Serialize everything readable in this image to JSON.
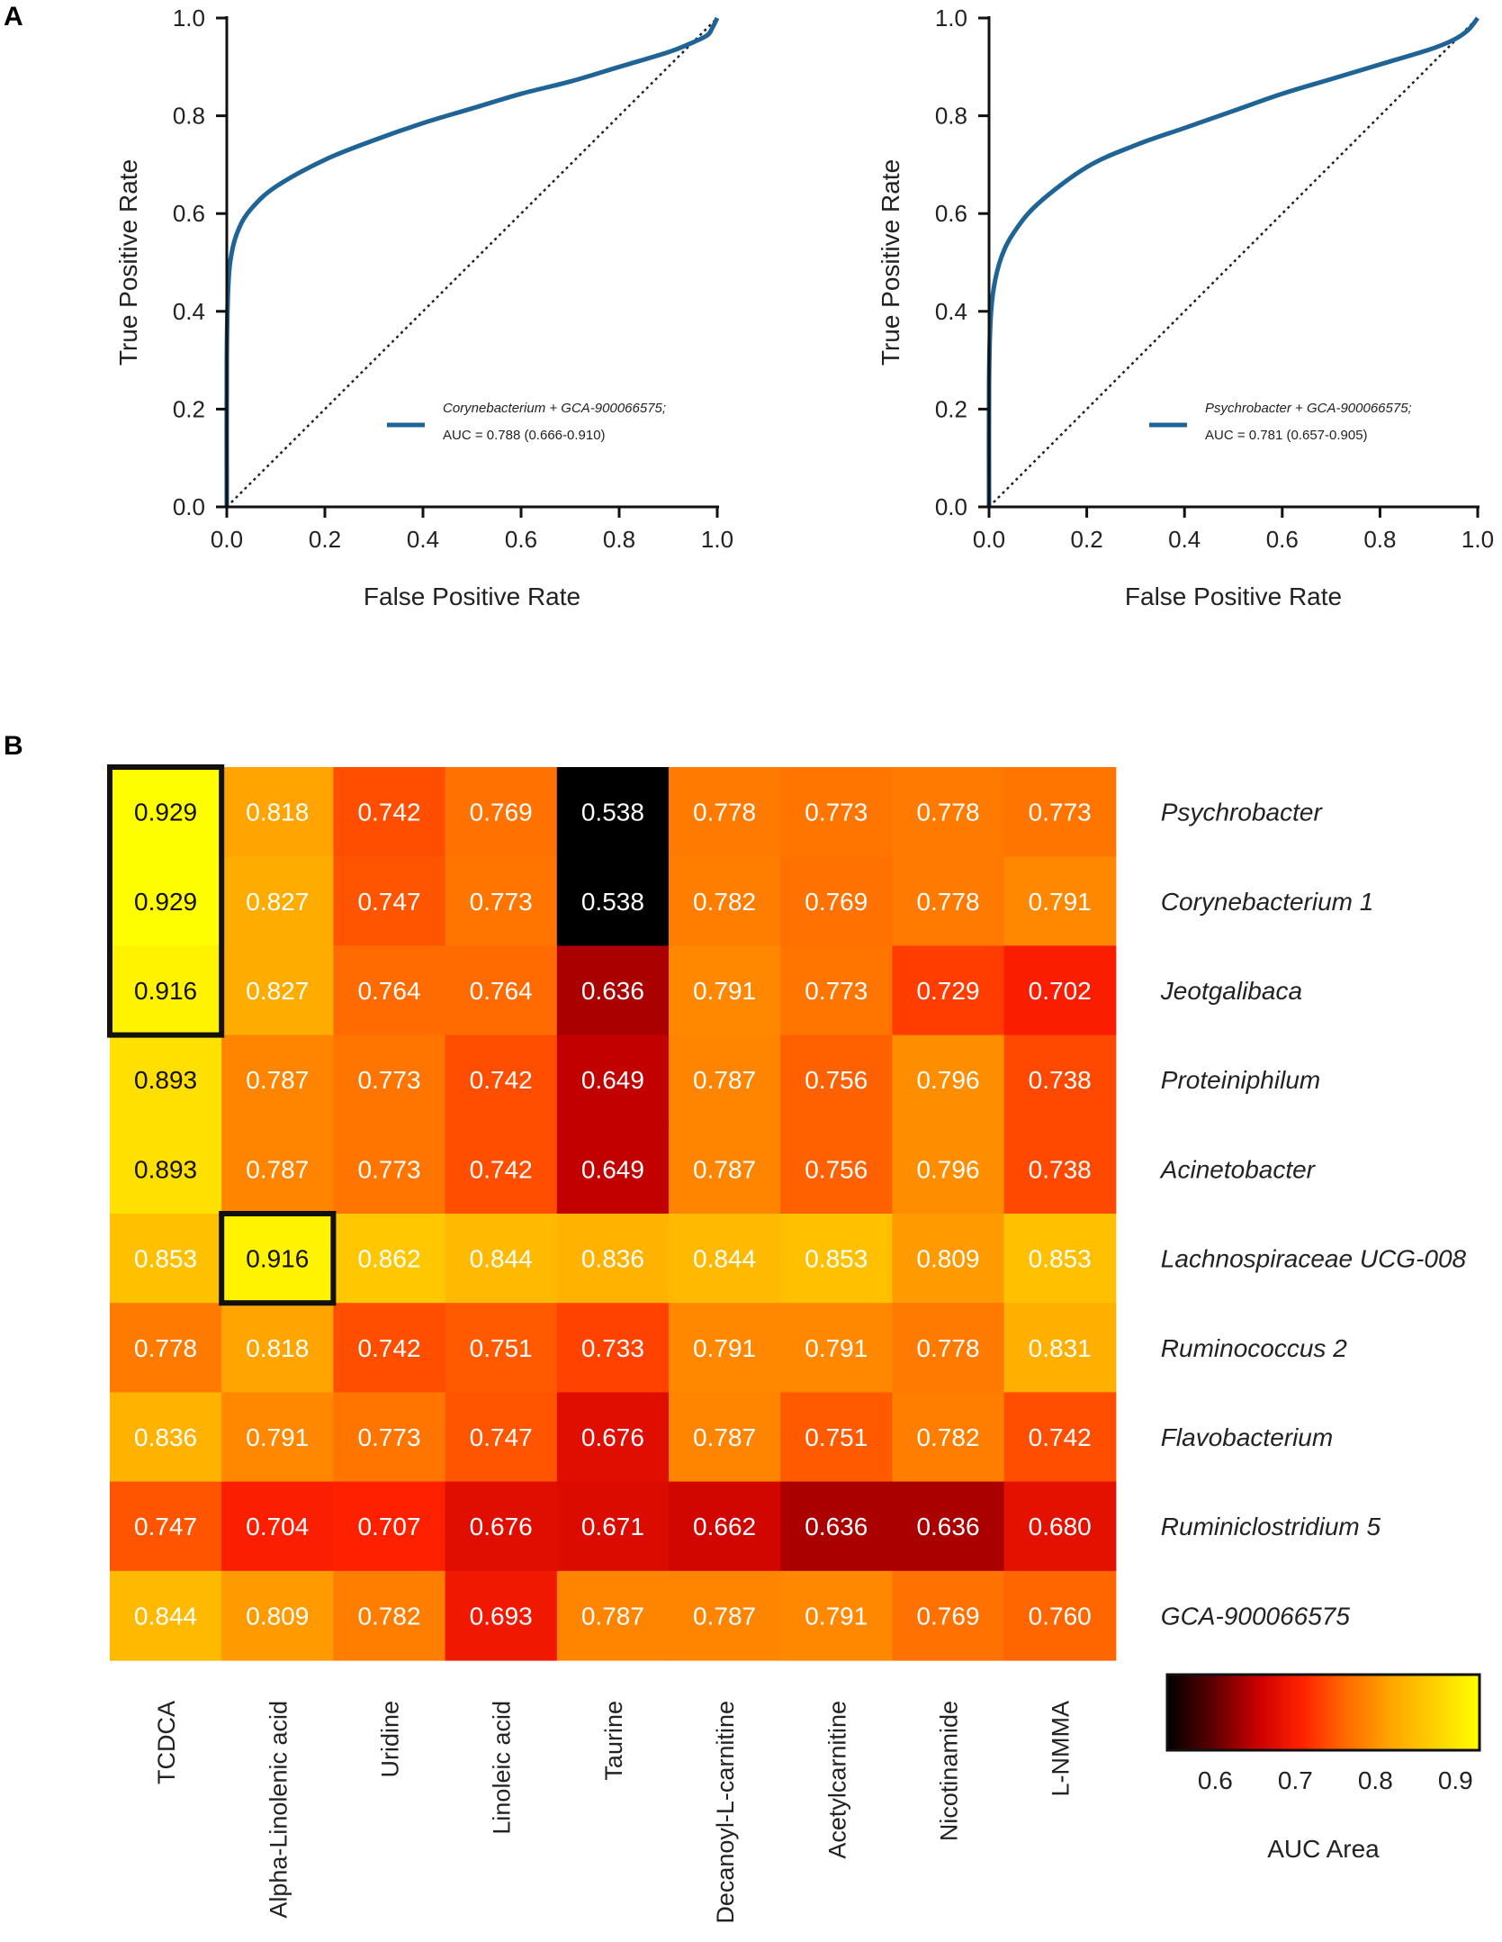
{
  "panels": {
    "a_label": "A",
    "b_label": "B"
  },
  "colors": {
    "roc_line": "#1e6496",
    "diagonal": "#222222",
    "axis": "#111111",
    "highlight_box": "#111111"
  },
  "chart_data": [
    {
      "type": "line",
      "id": "roc-left",
      "title": "",
      "xlabel": "False Positive Rate",
      "ylabel": "True Positive Rate",
      "xlim": [
        0,
        1
      ],
      "ylim": [
        0,
        1
      ],
      "xticks": [
        "0.0",
        "0.2",
        "0.4",
        "0.6",
        "0.8",
        "1.0"
      ],
      "yticks": [
        "0.0",
        "0.2",
        "0.4",
        "0.6",
        "0.8",
        "1.0"
      ],
      "legend": {
        "placement": "bottom-right",
        "title": "Corynebacterium + GCA-900066575;",
        "auc": "AUC = 0.788 (0.666-0.910)"
      },
      "series": [
        {
          "name": "ROC",
          "x": [
            0.0,
            0.0,
            0.003,
            0.01,
            0.025,
            0.05,
            0.1,
            0.2,
            0.3,
            0.4,
            0.5,
            0.6,
            0.7,
            0.8,
            0.9,
            0.95,
            0.98,
            0.99,
            1.0
          ],
          "y": [
            0.0,
            0.3,
            0.45,
            0.52,
            0.57,
            0.61,
            0.655,
            0.71,
            0.75,
            0.785,
            0.815,
            0.845,
            0.87,
            0.9,
            0.93,
            0.95,
            0.965,
            0.98,
            1.0
          ]
        },
        {
          "name": "Chance",
          "x": [
            0,
            1
          ],
          "y": [
            0,
            1
          ]
        }
      ]
    },
    {
      "type": "line",
      "id": "roc-right",
      "title": "",
      "xlabel": "False Positive Rate",
      "ylabel": "True Positive Rate",
      "xlim": [
        0,
        1
      ],
      "ylim": [
        0,
        1
      ],
      "xticks": [
        "0.0",
        "0.2",
        "0.4",
        "0.6",
        "0.8",
        "1.0"
      ],
      "yticks": [
        "0.0",
        "0.2",
        "0.4",
        "0.6",
        "0.8",
        "1.0"
      ],
      "legend": {
        "placement": "bottom-right",
        "title": "Psychrobacter + GCA-900066575;",
        "auc": "AUC = 0.781 (0.657-0.905)"
      },
      "series": [
        {
          "name": "ROC",
          "x": [
            0.0,
            0.0,
            0.003,
            0.01,
            0.025,
            0.05,
            0.1,
            0.2,
            0.3,
            0.4,
            0.5,
            0.6,
            0.7,
            0.8,
            0.9,
            0.95,
            0.98,
            1.0
          ],
          "y": [
            0.0,
            0.25,
            0.38,
            0.45,
            0.51,
            0.56,
            0.62,
            0.695,
            0.74,
            0.775,
            0.81,
            0.845,
            0.875,
            0.905,
            0.935,
            0.955,
            0.975,
            1.0
          ]
        },
        {
          "name": "Chance",
          "x": [
            0,
            1
          ],
          "y": [
            0,
            1
          ]
        }
      ]
    },
    {
      "type": "heatmap",
      "id": "auc-heatmap",
      "title": "",
      "rows": [
        "Psychrobacter",
        "Corynebacterium 1",
        "Jeotgalibaca",
        "Proteiniphilum",
        "Acinetobacter",
        "Lachnospiraceae UCG-008",
        "Ruminococcus 2",
        "Flavobacterium",
        "Ruminiclostridium 5",
        "GCA-900066575"
      ],
      "columns": [
        "TCDCA",
        "Alpha-Linolenic acid",
        "Uridine",
        "Linoleic acid",
        "Taurine",
        "Decanoyl-L-carnitine",
        "Acetylcarnitine",
        "Nicotinamide",
        "L-NMMA"
      ],
      "values": [
        [
          "0.929",
          "0.818",
          "0.742",
          "0.769",
          "0.538",
          "0.778",
          "0.773",
          "0.778",
          "0.773"
        ],
        [
          "0.929",
          "0.827",
          "0.747",
          "0.773",
          "0.538",
          "0.782",
          "0.769",
          "0.778",
          "0.791"
        ],
        [
          "0.916",
          "0.827",
          "0.764",
          "0.764",
          "0.636",
          "0.791",
          "0.773",
          "0.729",
          "0.702"
        ],
        [
          "0.893",
          "0.787",
          "0.773",
          "0.742",
          "0.649",
          "0.787",
          "0.756",
          "0.796",
          "0.738"
        ],
        [
          "0.893",
          "0.787",
          "0.773",
          "0.742",
          "0.649",
          "0.787",
          "0.756",
          "0.796",
          "0.738"
        ],
        [
          "0.853",
          "0.916",
          "0.862",
          "0.844",
          "0.836",
          "0.844",
          "0.853",
          "0.809",
          "0.853"
        ],
        [
          "0.778",
          "0.818",
          "0.742",
          "0.751",
          "0.733",
          "0.791",
          "0.791",
          "0.778",
          "0.831"
        ],
        [
          "0.836",
          "0.791",
          "0.773",
          "0.747",
          "0.676",
          "0.787",
          "0.751",
          "0.782",
          "0.742"
        ],
        [
          "0.747",
          "0.704",
          "0.707",
          "0.676",
          "0.671",
          "0.662",
          "0.636",
          "0.636",
          "0.680"
        ],
        [
          "0.844",
          "0.809",
          "0.782",
          "0.693",
          "0.787",
          "0.787",
          "0.791",
          "0.769",
          "0.760"
        ]
      ],
      "highlights": [
        {
          "row_start": 0,
          "row_end": 2,
          "col_start": 0,
          "col_end": 0
        },
        {
          "row_start": 5,
          "row_end": 5,
          "col_start": 1,
          "col_end": 1
        }
      ],
      "colorbar": {
        "label": "AUC Area",
        "range": [
          0.54,
          0.93
        ],
        "ticks": [
          "0.6",
          "0.7",
          "0.8",
          "0.9"
        ],
        "stops": [
          "#000000",
          "#5a0000",
          "#c80000",
          "#ff2000",
          "#ff6a00",
          "#ffa500",
          "#ffd000",
          "#ffff00"
        ]
      }
    }
  ]
}
